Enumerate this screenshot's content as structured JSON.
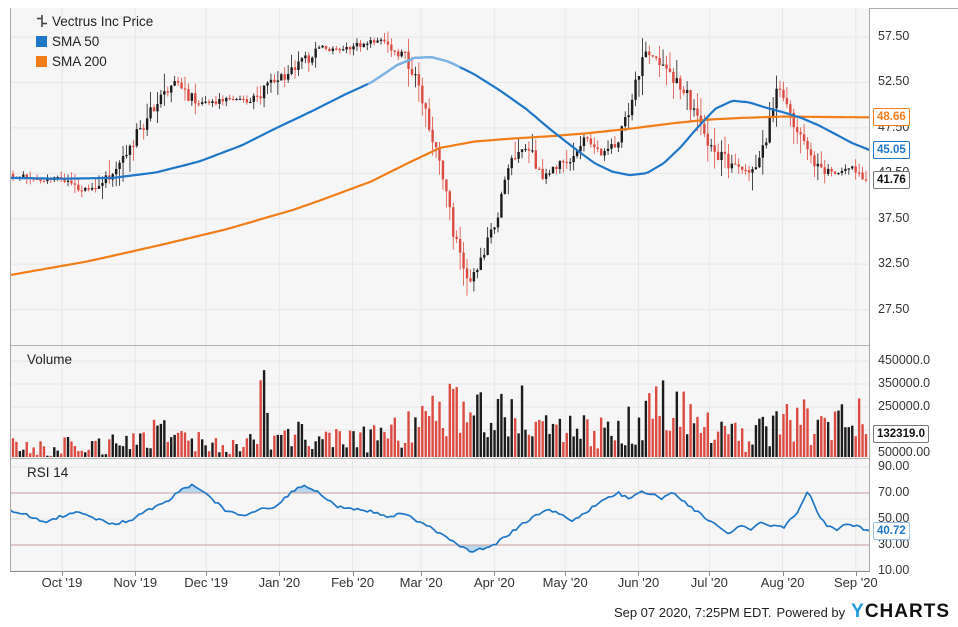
{
  "legend": {
    "price": {
      "label": "Vectrus Inc Price"
    },
    "sma50": {
      "label": "SMA 50",
      "color": "#1f77c8"
    },
    "sma200": {
      "label": "SMA 200",
      "color": "#f07d18"
    }
  },
  "panes": {
    "volume_title": "Volume",
    "rsi_title": "RSI 14"
  },
  "badges": {
    "sma200": "48.66",
    "sma50": "45.05",
    "price": "41.76",
    "volume": "132319.0",
    "rsi": "40.72"
  },
  "axes": {
    "price_ticks": [
      "57.50",
      "52.50",
      "47.50",
      "42.50",
      "37.50",
      "32.50",
      "27.50"
    ],
    "volume_ticks": [
      "450000.0",
      "350000.0",
      "250000.0",
      "50000.00"
    ],
    "rsi_ticks": [
      "90.00",
      "70.00",
      "50.00",
      "30.00",
      "10.00"
    ],
    "x_labels": [
      "Oct '19",
      "Nov '19",
      "Dec '19",
      "Jan '20",
      "Feb '20",
      "Mar '20",
      "Apr '20",
      "May '20",
      "Jun '20",
      "Jul '20",
      "Aug '20",
      "Sep '20"
    ]
  },
  "footer": {
    "timestamp": "Sep 07 2020, 7:25PM EDT.",
    "powered_by": "Powered by",
    "logo_y": "Y",
    "logo_rest": "CHARTS"
  },
  "colors": {
    "up": "#1b1b1b",
    "down": "#dc4b41",
    "sma50": "#1f77c8",
    "sma50_highlight": "#7db4e3",
    "sma200": "#f07d18",
    "rsi": "#1f77c8",
    "band_fill": "#aed1ec",
    "band_line": "#c79f9f",
    "grid": "#e7e7e8",
    "pane_bg": "#f6f6f7",
    "border": "#a9a9a9",
    "axis_text": "#333333",
    "logo_blue": "#1e9be0"
  },
  "chart_data": [
    {
      "type": "candlestick",
      "title": "Vectrus Inc Price",
      "x_range": [
        "Sep '19",
        "Sep 7 2020"
      ],
      "ylim": [
        23.6,
        60.7
      ],
      "yticks": [
        57.5,
        52.5,
        47.5,
        42.5,
        37.5,
        32.5,
        27.5
      ],
      "last_close": 41.76,
      "series": [
        {
          "name": "Vectrus Inc Price",
          "type": "candlestick",
          "weekly_close_anchors": [
            [
              0,
              42.3
            ],
            [
              0.017,
              42.0
            ],
            [
              0.034,
              41.6
            ],
            [
              0.052,
              42.1
            ],
            [
              0.069,
              41.3
            ],
            [
              0.086,
              40.6
            ],
            [
              0.103,
              41.0
            ],
            [
              0.121,
              43.0
            ],
            [
              0.138,
              45.5
            ],
            [
              0.155,
              48.0
            ],
            [
              0.172,
              50.5
            ],
            [
              0.19,
              52.8
            ],
            [
              0.207,
              51.0
            ],
            [
              0.224,
              50.2
            ],
            [
              0.241,
              50.4
            ],
            [
              0.259,
              50.8
            ],
            [
              0.276,
              50.3
            ],
            [
              0.293,
              51.5
            ],
            [
              0.31,
              52.8
            ],
            [
              0.328,
              53.8
            ],
            [
              0.345,
              55.2
            ],
            [
              0.362,
              56.3
            ],
            [
              0.379,
              56.0
            ],
            [
              0.397,
              56.5
            ],
            [
              0.414,
              56.8
            ],
            [
              0.431,
              57.2
            ],
            [
              0.448,
              56.2
            ],
            [
              0.466,
              54.5
            ],
            [
              0.483,
              50.0
            ],
            [
              0.5,
              43.5
            ],
            [
              0.517,
              36.0
            ],
            [
              0.534,
              30.0
            ],
            [
              0.552,
              33.5
            ],
            [
              0.569,
              38.5
            ],
            [
              0.586,
              44.5
            ],
            [
              0.603,
              45.5
            ],
            [
              0.621,
              42.0
            ],
            [
              0.638,
              43.5
            ],
            [
              0.655,
              44.5
            ],
            [
              0.672,
              46.5
            ],
            [
              0.69,
              44.5
            ],
            [
              0.707,
              46.0
            ],
            [
              0.724,
              50.0
            ],
            [
              0.741,
              56.5
            ],
            [
              0.759,
              54.5
            ],
            [
              0.776,
              53.0
            ],
            [
              0.793,
              50.5
            ],
            [
              0.81,
              47.0
            ],
            [
              0.828,
              44.5
            ],
            [
              0.845,
              43.2
            ],
            [
              0.862,
              42.6
            ],
            [
              0.879,
              45.0
            ],
            [
              0.897,
              52.0
            ],
            [
              0.914,
              48.0
            ],
            [
              0.931,
              44.8
            ],
            [
              0.948,
              42.8
            ],
            [
              0.966,
              42.6
            ],
            [
              0.983,
              43.0
            ],
            [
              1,
              41.76
            ]
          ]
        },
        {
          "name": "SMA 50",
          "type": "line",
          "last": 45.05,
          "highlight_segment": [
            0.416,
            0.523
          ],
          "anchors": [
            [
              0,
              42.0
            ],
            [
              0.06,
              41.9
            ],
            [
              0.12,
              42.0
            ],
            [
              0.17,
              42.6
            ],
            [
              0.22,
              43.8
            ],
            [
              0.27,
              45.6
            ],
            [
              0.31,
              47.5
            ],
            [
              0.35,
              49.3
            ],
            [
              0.39,
              51.2
            ],
            [
              0.42,
              52.5
            ],
            [
              0.45,
              54.4
            ],
            [
              0.47,
              55.2
            ],
            [
              0.49,
              55.3
            ],
            [
              0.51,
              54.8
            ],
            [
              0.54,
              53.4
            ],
            [
              0.57,
              51.6
            ],
            [
              0.6,
              49.6
            ],
            [
              0.63,
              47.2
            ],
            [
              0.66,
              45.0
            ],
            [
              0.68,
              43.6
            ],
            [
              0.7,
              42.7
            ],
            [
              0.72,
              42.3
            ],
            [
              0.74,
              42.5
            ],
            [
              0.76,
              43.6
            ],
            [
              0.78,
              45.4
            ],
            [
              0.8,
              47.6
            ],
            [
              0.82,
              49.6
            ],
            [
              0.84,
              50.5
            ],
            [
              0.86,
              50.3
            ],
            [
              0.88,
              49.7
            ],
            [
              0.9,
              49.2
            ],
            [
              0.92,
              48.6
            ],
            [
              0.94,
              47.8
            ],
            [
              0.96,
              46.8
            ],
            [
              0.98,
              45.8
            ],
            [
              1,
              45.05
            ]
          ]
        },
        {
          "name": "SMA 200",
          "type": "line",
          "last": 48.66,
          "anchors": [
            [
              0,
              31.3
            ],
            [
              0.09,
              32.8
            ],
            [
              0.17,
              34.5
            ],
            [
              0.25,
              36.3
            ],
            [
              0.33,
              38.5
            ],
            [
              0.36,
              39.5
            ],
            [
              0.42,
              41.6
            ],
            [
              0.46,
              43.5
            ],
            [
              0.5,
              45.3
            ],
            [
              0.54,
              46.0
            ],
            [
              0.58,
              46.3
            ],
            [
              0.63,
              46.6
            ],
            [
              0.67,
              46.9
            ],
            [
              0.72,
              47.4
            ],
            [
              0.77,
              48.0
            ],
            [
              0.81,
              48.4
            ],
            [
              0.85,
              48.6
            ],
            [
              0.9,
              48.75
            ],
            [
              0.95,
              48.7
            ],
            [
              1,
              48.66
            ]
          ]
        }
      ]
    },
    {
      "type": "bar",
      "title": "Volume",
      "ylim": [
        28000,
        520000
      ],
      "yticks": [
        450000,
        350000,
        250000,
        150000,
        50000
      ],
      "last": 132319.0,
      "anchors": [
        [
          0,
          75000
        ],
        [
          0.03,
          65000
        ],
        [
          0.06,
          80000
        ],
        [
          0.09,
          70000
        ],
        [
          0.12,
          90000
        ],
        [
          0.15,
          110000
        ],
        [
          0.17,
          150000
        ],
        [
          0.2,
          120000
        ],
        [
          0.23,
          90000
        ],
        [
          0.26,
          85000
        ],
        [
          0.285,
          110000
        ],
        [
          0.293,
          455000
        ],
        [
          0.3,
          130000
        ],
        [
          0.31,
          140000
        ],
        [
          0.34,
          120000
        ],
        [
          0.37,
          110000
        ],
        [
          0.4,
          100000
        ],
        [
          0.43,
          120000
        ],
        [
          0.46,
          140000
        ],
        [
          0.48,
          200000
        ],
        [
          0.5,
          220000
        ],
        [
          0.52,
          250000
        ],
        [
          0.54,
          230000
        ],
        [
          0.56,
          260000
        ],
        [
          0.565,
          180000
        ],
        [
          0.57,
          370000
        ],
        [
          0.575,
          200000
        ],
        [
          0.59,
          250000
        ],
        [
          0.61,
          200000
        ],
        [
          0.64,
          170000
        ],
        [
          0.67,
          150000
        ],
        [
          0.7,
          140000
        ],
        [
          0.72,
          160000
        ],
        [
          0.74,
          220000
        ],
        [
          0.75,
          260000
        ],
        [
          0.77,
          230000
        ],
        [
          0.79,
          200000
        ],
        [
          0.81,
          160000
        ],
        [
          0.84,
          130000
        ],
        [
          0.86,
          120000
        ],
        [
          0.88,
          140000
        ],
        [
          0.9,
          170000
        ],
        [
          0.92,
          230000
        ],
        [
          0.94,
          160000
        ],
        [
          0.96,
          180000
        ],
        [
          0.975,
          260000
        ],
        [
          0.99,
          200000
        ],
        [
          1,
          132319
        ]
      ]
    },
    {
      "type": "line",
      "title": "RSI 14",
      "ylim": [
        9.2,
        96.9
      ],
      "yticks": [
        90,
        70,
        50,
        30,
        10
      ],
      "bands": {
        "overbought": 70,
        "oversold": 30
      },
      "last": 40.72,
      "anchors": [
        [
          0,
          57
        ],
        [
          0.02,
          53
        ],
        [
          0.04,
          48
        ],
        [
          0.06,
          52
        ],
        [
          0.08,
          55
        ],
        [
          0.1,
          50
        ],
        [
          0.12,
          46
        ],
        [
          0.14,
          49
        ],
        [
          0.16,
          57
        ],
        [
          0.18,
          62
        ],
        [
          0.2,
          73
        ],
        [
          0.212,
          76
        ],
        [
          0.23,
          68
        ],
        [
          0.25,
          57
        ],
        [
          0.27,
          53
        ],
        [
          0.29,
          57
        ],
        [
          0.31,
          60
        ],
        [
          0.33,
          72
        ],
        [
          0.342,
          76
        ],
        [
          0.36,
          70
        ],
        [
          0.38,
          60
        ],
        [
          0.4,
          58
        ],
        [
          0.42,
          56
        ],
        [
          0.44,
          52
        ],
        [
          0.46,
          54
        ],
        [
          0.475,
          48
        ],
        [
          0.49,
          43
        ],
        [
          0.505,
          37
        ],
        [
          0.52,
          30
        ],
        [
          0.535,
          25
        ],
        [
          0.55,
          27
        ],
        [
          0.565,
          31
        ],
        [
          0.58,
          38
        ],
        [
          0.595,
          46
        ],
        [
          0.61,
          52
        ],
        [
          0.625,
          58
        ],
        [
          0.64,
          54
        ],
        [
          0.652,
          48
        ],
        [
          0.665,
          53
        ],
        [
          0.68,
          60
        ],
        [
          0.695,
          66
        ],
        [
          0.707,
          70
        ],
        [
          0.72,
          65
        ],
        [
          0.732,
          71
        ],
        [
          0.745,
          69
        ],
        [
          0.758,
          66
        ],
        [
          0.77,
          70
        ],
        [
          0.78,
          65
        ],
        [
          0.8,
          55
        ],
        [
          0.82,
          46
        ],
        [
          0.837,
          38
        ],
        [
          0.85,
          45
        ],
        [
          0.862,
          42
        ],
        [
          0.874,
          47
        ],
        [
          0.886,
          45
        ],
        [
          0.9,
          44
        ],
        [
          0.915,
          55
        ],
        [
          0.928,
          72
        ],
        [
          0.94,
          52
        ],
        [
          0.952,
          44
        ],
        [
          0.963,
          42
        ],
        [
          0.974,
          47
        ],
        [
          0.985,
          44
        ],
        [
          1,
          40.72
        ]
      ]
    }
  ]
}
